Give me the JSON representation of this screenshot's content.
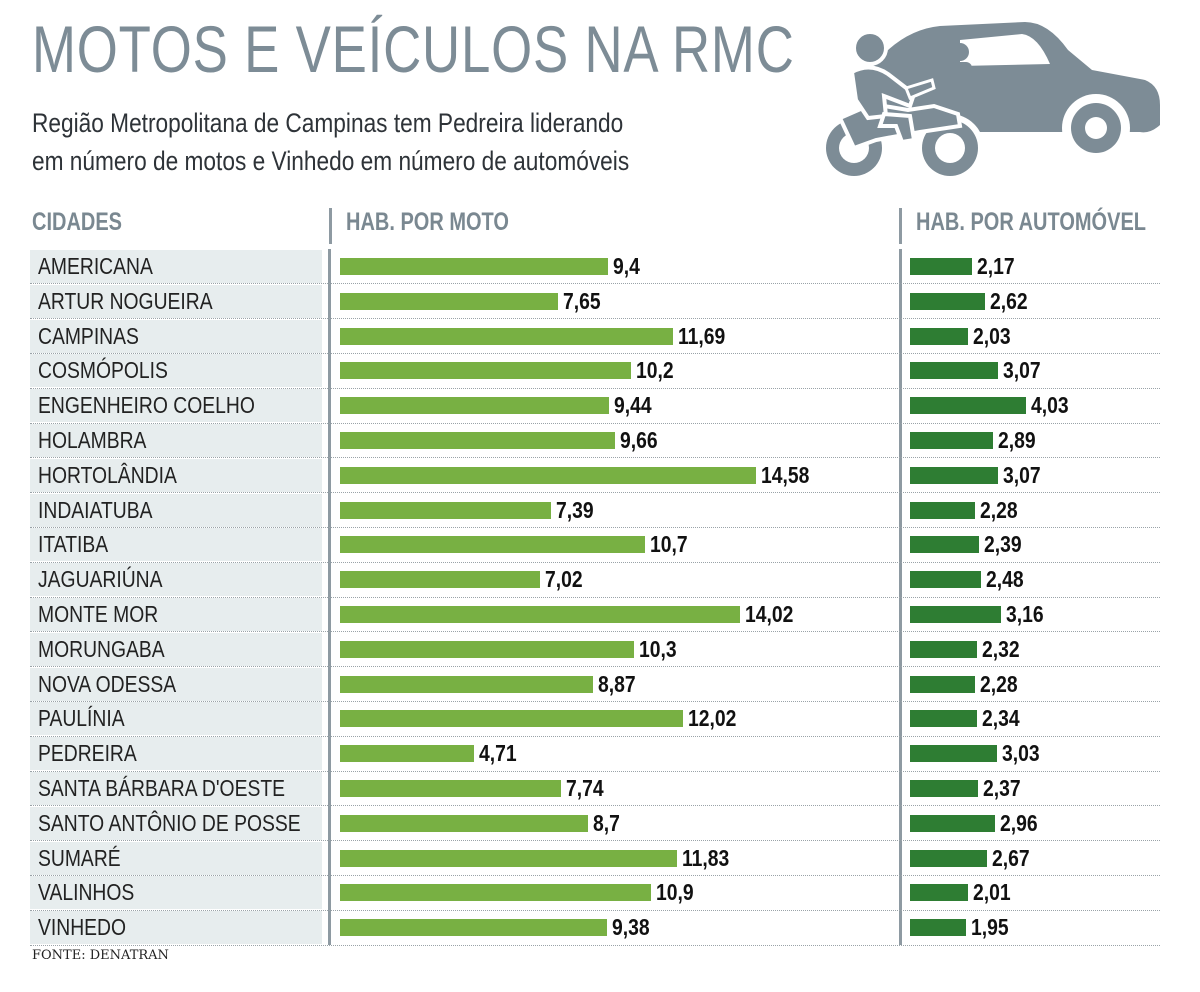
{
  "title": "MOTOS E VEÍCULOS NA RMC",
  "subtitle_line1": "Região Metropolitana de Campinas tem Pedreira liderando",
  "subtitle_line2": "em número de motos e Vinhedo em número de automóveis",
  "source": "FONTE: DENATRAN",
  "icons": [
    "motorcycle-rider-icon",
    "car-icon"
  ],
  "colors": {
    "title": "#7d8c96",
    "moto_bar": "#78b043",
    "car_bar": "#2e7d33",
    "header": "#7a8891"
  },
  "chart_data": {
    "type": "bar",
    "orientation": "horizontal",
    "column_headers": [
      "CIDADES",
      "HAB. POR MOTO",
      "HAB. POR AUTOMÓVEL"
    ],
    "categories": [
      "AMERICANA",
      "ARTUR NOGUEIRA",
      "CAMPINAS",
      "COSMÓPOLIS",
      "ENGENHEIRO COELHO",
      "HOLAMBRA",
      "HORTOLÂNDIA",
      "INDAIATUBA",
      "ITATIBA",
      "JAGUARIÚNA",
      "MONTE MOR",
      "MORUNGABA",
      "NOVA ODESSA",
      "PAULÍNIA",
      "PEDREIRA",
      "SANTA BÁRBARA D'OESTE",
      "SANTO ANTÔNIO DE POSSE",
      "SUMARÉ",
      "VALINHOS",
      "VINHEDO"
    ],
    "series": [
      {
        "values": [
          9.4,
          7.65,
          11.69,
          10.2,
          9.44,
          9.66,
          14.58,
          7.39,
          10.7,
          7.02,
          14.02,
          10.3,
          8.87,
          12.02,
          4.71,
          7.74,
          8.7,
          11.83,
          10.9,
          9.38
        ],
        "labels": [
          "9,4",
          "7,65",
          "11,69",
          "10,2",
          "9,44",
          "9,66",
          "14,58",
          "7,39",
          "10,7",
          "7,02",
          "14,02",
          "10,3",
          "8,87",
          "12,02",
          "4,71",
          "7,74",
          "8,7",
          "11,83",
          "10,9",
          "9,38"
        ]
      },
      {
        "values": [
          2.17,
          2.62,
          2.03,
          3.07,
          4.03,
          2.89,
          3.07,
          2.28,
          2.39,
          2.48,
          3.16,
          2.32,
          2.28,
          2.34,
          3.03,
          2.37,
          2.96,
          2.67,
          2.01,
          1.95
        ],
        "labels": [
          "2,17",
          "2,62",
          "2,03",
          "3,07",
          "4,03",
          "2,89",
          "3,07",
          "2,28",
          "2,39",
          "2,48",
          "3,16",
          "2,32",
          "2,28",
          "2,34",
          "3,03",
          "2,37",
          "2,96",
          "2,67",
          "2,01",
          "1,95"
        ]
      }
    ],
    "legend": "none",
    "grid": false
  }
}
